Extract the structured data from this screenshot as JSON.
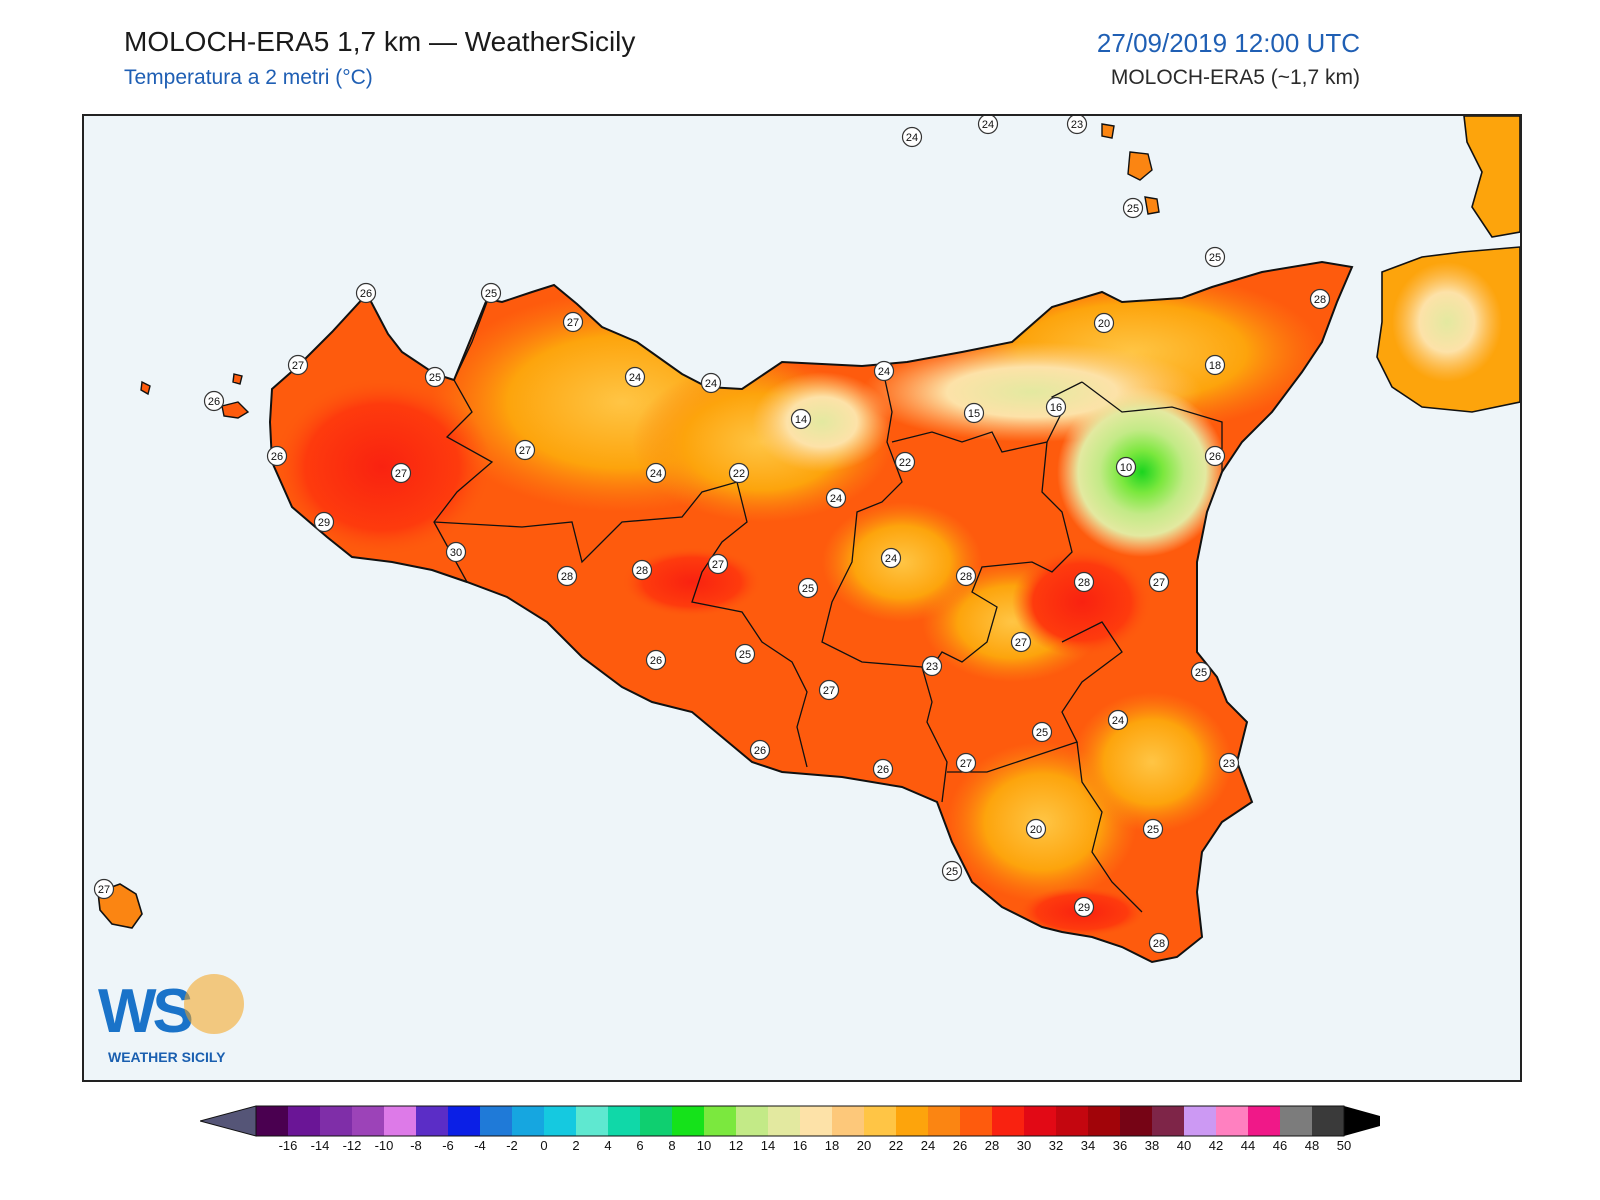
{
  "header": {
    "title": "MOLOCH-ERA5 1,7 km — WeatherSicily",
    "subtitle": "Temperatura a 2 metri (°C)",
    "datetime": "27/09/2019 12:00 UTC",
    "model": "MOLOCH-ERA5 (~1,7 km)"
  },
  "logo": {
    "letters": "WS",
    "text": "WEATHER SICILY"
  },
  "colors": {
    "sea": "#eef5f9",
    "coast": "#111111"
  },
  "stations": [
    {
      "id": "s1",
      "value": "24"
    },
    {
      "id": "s2",
      "value": "24"
    },
    {
      "id": "s3",
      "value": "23"
    },
    {
      "id": "s4",
      "value": "25"
    },
    {
      "id": "s5",
      "value": "25"
    },
    {
      "id": "s6",
      "value": "28"
    },
    {
      "id": "s7",
      "value": "26"
    },
    {
      "id": "s8",
      "value": "25"
    },
    {
      "id": "s9",
      "value": "27"
    },
    {
      "id": "s10",
      "value": "27"
    },
    {
      "id": "s11",
      "value": "25"
    },
    {
      "id": "s12",
      "value": "26"
    },
    {
      "id": "s13",
      "value": "24"
    },
    {
      "id": "s14",
      "value": "24"
    },
    {
      "id": "s15",
      "value": "20"
    },
    {
      "id": "s16",
      "value": "24"
    },
    {
      "id": "s17",
      "value": "18"
    },
    {
      "id": "s18",
      "value": "14"
    },
    {
      "id": "s19",
      "value": "15"
    },
    {
      "id": "s20",
      "value": "16"
    },
    {
      "id": "s21",
      "value": "26"
    },
    {
      "id": "s22",
      "value": "27"
    },
    {
      "id": "s23",
      "value": "27"
    },
    {
      "id": "s24",
      "value": "24"
    },
    {
      "id": "s25",
      "value": "22"
    },
    {
      "id": "s26",
      "value": "22"
    },
    {
      "id": "s27",
      "value": "10"
    },
    {
      "id": "s28",
      "value": "24"
    },
    {
      "id": "s29",
      "value": "26"
    },
    {
      "id": "s30",
      "value": "29"
    },
    {
      "id": "s31",
      "value": "30"
    },
    {
      "id": "s32",
      "value": "28"
    },
    {
      "id": "s33",
      "value": "28"
    },
    {
      "id": "s34",
      "value": "27"
    },
    {
      "id": "s35",
      "value": "24"
    },
    {
      "id": "s36",
      "value": "28"
    },
    {
      "id": "s37",
      "value": "28"
    },
    {
      "id": "s38",
      "value": "25"
    },
    {
      "id": "s39",
      "value": "27"
    },
    {
      "id": "s40",
      "value": "27"
    },
    {
      "id": "s41",
      "value": "26"
    },
    {
      "id": "s42",
      "value": "25"
    },
    {
      "id": "s43",
      "value": "23"
    },
    {
      "id": "s44",
      "value": "25"
    },
    {
      "id": "s45",
      "value": "27"
    },
    {
      "id": "s46",
      "value": "24"
    },
    {
      "id": "s47",
      "value": "25"
    },
    {
      "id": "s48",
      "value": "26"
    },
    {
      "id": "s49",
      "value": "26"
    },
    {
      "id": "s50",
      "value": "27"
    },
    {
      "id": "s51",
      "value": "23"
    },
    {
      "id": "s52",
      "value": "20"
    },
    {
      "id": "s53",
      "value": "25"
    },
    {
      "id": "s54",
      "value": "25"
    },
    {
      "id": "s55",
      "value": "29"
    },
    {
      "id": "s56",
      "value": "28"
    },
    {
      "id": "s57",
      "value": "27"
    }
  ],
  "colorbar": {
    "ticks": [
      "-16",
      "-14",
      "-12",
      "-10",
      "-8",
      "-6",
      "-4",
      "-2",
      "0",
      "2",
      "4",
      "6",
      "8",
      "10",
      "12",
      "14",
      "16",
      "18",
      "20",
      "22",
      "24",
      "26",
      "28",
      "30",
      "32",
      "34",
      "36",
      "38",
      "40",
      "42",
      "44",
      "46",
      "48",
      "50"
    ],
    "colors": [
      "#4a0050",
      "#6a1596",
      "#7f2ea8",
      "#9c43b8",
      "#dd7ae8",
      "#5b2dc6",
      "#0b1fe6",
      "#1f7ad8",
      "#16a6e0",
      "#15c9e0",
      "#5fe8d0",
      "#10d8a8",
      "#0fcf70",
      "#15e21a",
      "#7be83e",
      "#c3ea87",
      "#e3e9a0",
      "#fde2a8",
      "#fdc87a",
      "#ffc545",
      "#fda40c",
      "#fb8512",
      "#fe5b0d",
      "#f92210",
      "#e20915",
      "#c4060f",
      "#a10409",
      "#760415",
      "#7e2548",
      "#cc99f3",
      "#ff80c0",
      "#f01888",
      "#7c7c7c",
      "#3a3a3a"
    ]
  }
}
